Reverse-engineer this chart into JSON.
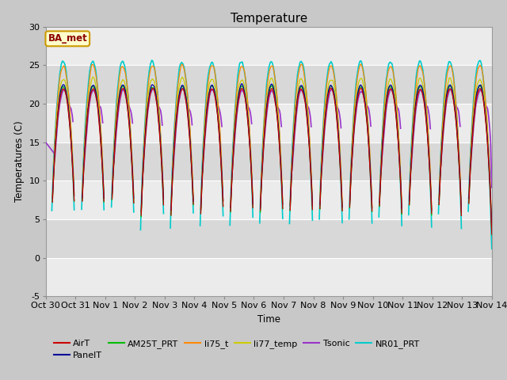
{
  "title": "Temperature",
  "xlabel": "Time",
  "ylabel": "Temperatures (C)",
  "ylim": [
    -5,
    30
  ],
  "xlim": [
    0,
    15
  ],
  "xtick_labels": [
    "Oct 30",
    "Oct 31",
    "Nov 1",
    "Nov 2",
    "Nov 3",
    "Nov 4",
    "Nov 5",
    "Nov 6",
    "Nov 7",
    "Nov 8",
    "Nov 9",
    "Nov 10",
    "Nov 11",
    "Nov 12",
    "Nov 13",
    "Nov 14"
  ],
  "xtick_positions": [
    0,
    1,
    2,
    3,
    4,
    5,
    6,
    7,
    8,
    9,
    10,
    11,
    12,
    13,
    14,
    15
  ],
  "ytick_labels": [
    "-5",
    "0",
    "5",
    "10",
    "15",
    "20",
    "25",
    "30"
  ],
  "ytick_positions": [
    -5,
    0,
    5,
    10,
    15,
    20,
    25,
    30
  ],
  "series": {
    "AirT": {
      "color": "#cc0000",
      "lw": 0.9
    },
    "PanelT": {
      "color": "#000099",
      "lw": 0.9
    },
    "AM25T_PRT": {
      "color": "#00bb00",
      "lw": 0.9
    },
    "li75_t": {
      "color": "#ff8800",
      "lw": 0.9
    },
    "li77_temp": {
      "color": "#cccc00",
      "lw": 0.9
    },
    "Tsonic": {
      "color": "#9933cc",
      "lw": 1.2
    },
    "NR01_PRT": {
      "color": "#00cccc",
      "lw": 1.2
    }
  },
  "legend_text": "BA_met",
  "legend_box_edgecolor": "#cc9900",
  "legend_box_bg": "#ffffcc",
  "fig_facecolor": "#c8c8c8",
  "plot_bg_color": "#d8d8d8",
  "title_fontsize": 11,
  "label_fontsize": 8.5,
  "tick_fontsize": 8
}
